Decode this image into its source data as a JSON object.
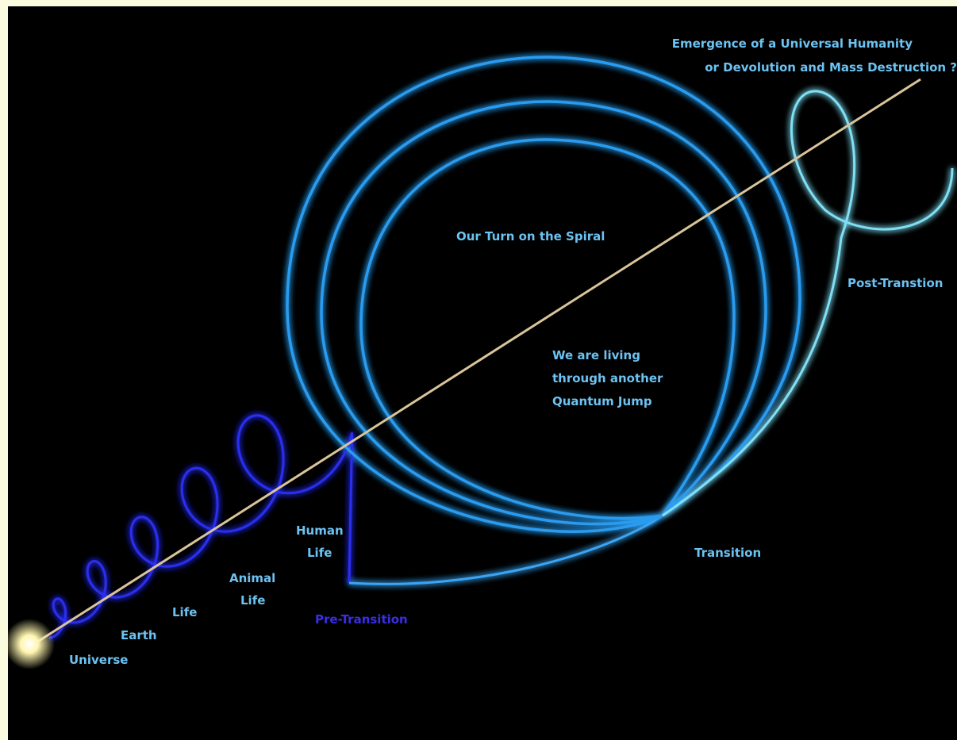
{
  "heading": {
    "line1": "Emergence of a Universal Humanity",
    "line2": "or Devolution and Mass Destruction ?"
  },
  "labels": {
    "our_turn": "Our Turn on the Spiral",
    "living": [
      "We are living",
      "through another",
      "Quantum Jump"
    ],
    "post": "Post-Transtion",
    "transition": "Transition",
    "pre": "Pre-Transition",
    "human": [
      "Human",
      "Life"
    ],
    "animal": [
      "Animal",
      "Life"
    ],
    "life": "Life",
    "earth": "Earth",
    "universe": "Universe"
  }
}
